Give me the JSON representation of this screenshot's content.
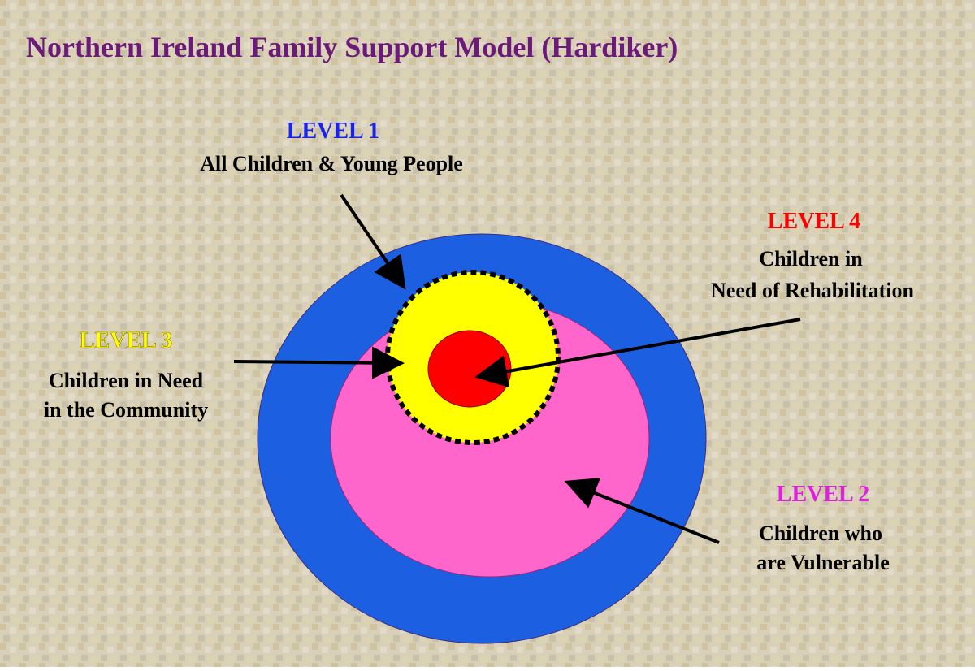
{
  "title": "Northern Ireland Family Support Model (Hardiker)",
  "levels": [
    {
      "heading": "LEVEL 1",
      "lines": [
        "All Children & Young People"
      ]
    },
    {
      "heading": "LEVEL 2",
      "lines": [
        "Children who",
        "are Vulnerable"
      ]
    },
    {
      "heading": "LEVEL 3",
      "lines": [
        "Children in Need",
        "in the Community"
      ]
    },
    {
      "heading": "LEVEL 4",
      "lines": [
        "Children in",
        "Need of Rehabilitation"
      ]
    }
  ]
}
